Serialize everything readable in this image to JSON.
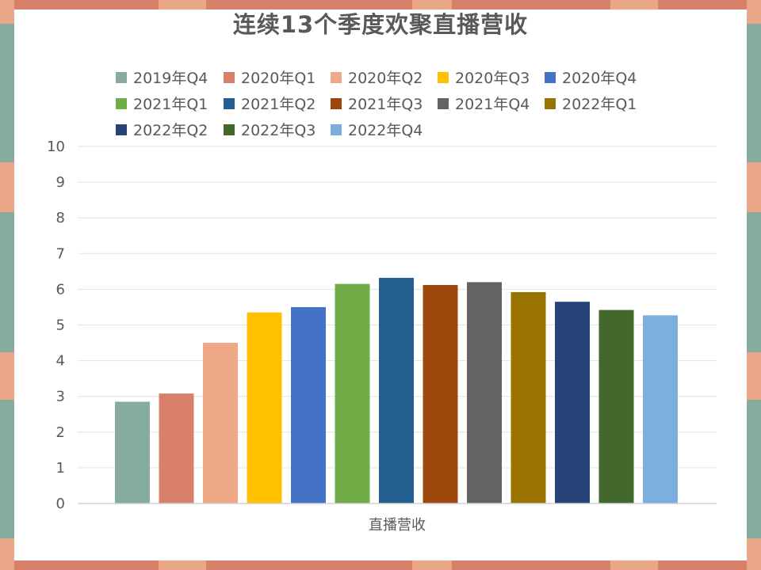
{
  "chart_data": {
    "type": "bar",
    "title": "连续13个季度欢聚直播营收",
    "categories": [
      "直播营收"
    ],
    "xlabel": "",
    "ylabel": "",
    "ylim": [
      0,
      10
    ],
    "yticks": [
      "0",
      "1",
      "2",
      "3",
      "4",
      "5",
      "6",
      "7",
      "8",
      "9",
      "10"
    ],
    "grid": true,
    "legend_position": "top",
    "series": [
      {
        "name": "2019年Q4",
        "values": [
          2.85
        ],
        "color": "#86ab9f"
      },
      {
        "name": "2020年Q1",
        "values": [
          3.08
        ],
        "color": "#d8806a"
      },
      {
        "name": "2020年Q2",
        "values": [
          4.5
        ],
        "color": "#f0a987"
      },
      {
        "name": "2020年Q3",
        "values": [
          5.35
        ],
        "color": "#ffc000"
      },
      {
        "name": "2020年Q4",
        "values": [
          5.5
        ],
        "color": "#4472c4"
      },
      {
        "name": "2021年Q1",
        "values": [
          6.15
        ],
        "color": "#70ad47"
      },
      {
        "name": "2021年Q2",
        "values": [
          6.32
        ],
        "color": "#255e91"
      },
      {
        "name": "2021年Q3",
        "values": [
          6.12
        ],
        "color": "#9e480e"
      },
      {
        "name": "2021年Q4",
        "values": [
          6.2
        ],
        "color": "#636363"
      },
      {
        "name": "2022年Q1",
        "values": [
          5.92
        ],
        "color": "#997300"
      },
      {
        "name": "2022年Q2",
        "values": [
          5.65
        ],
        "color": "#264478"
      },
      {
        "name": "2022年Q3",
        "values": [
          5.42
        ],
        "color": "#43682b"
      },
      {
        "name": "2022年Q4",
        "values": [
          5.27
        ],
        "color": "#7cafdd"
      }
    ]
  }
}
